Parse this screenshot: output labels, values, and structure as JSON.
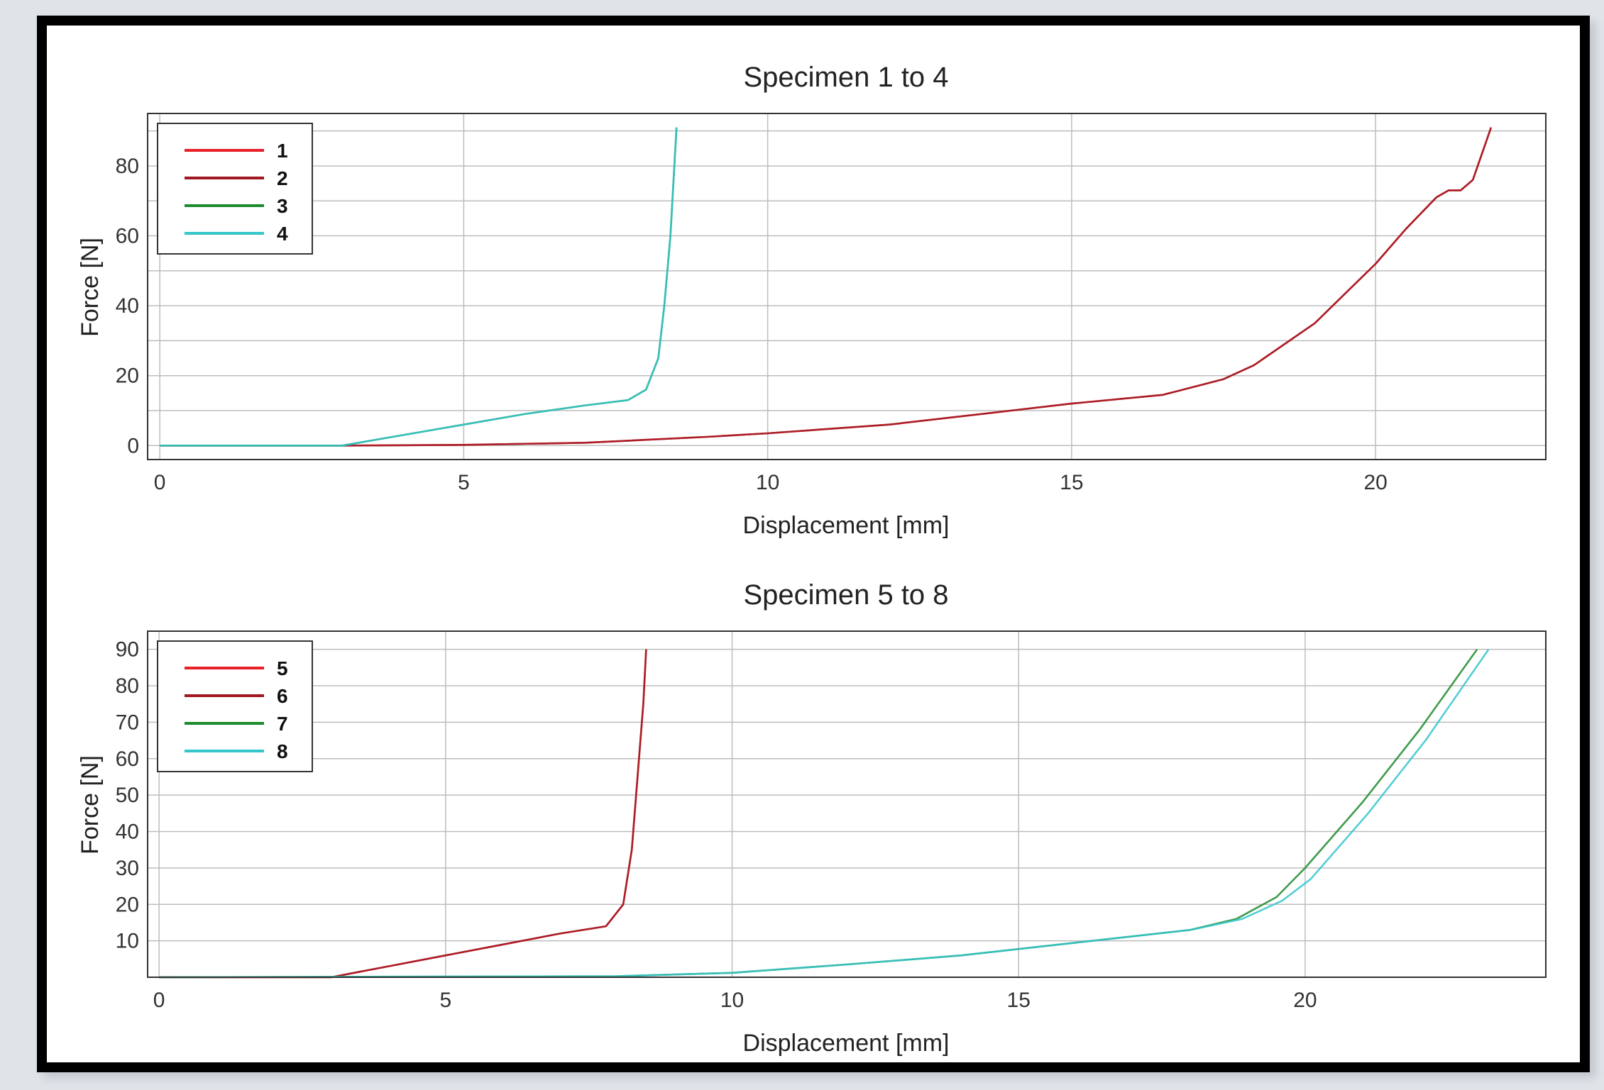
{
  "chart_data": [
    {
      "type": "line",
      "title": "Specimen 1 to 4",
      "xlabel": "Displacement [mm]",
      "ylabel": "Force [N]",
      "xlim": [
        -0.2,
        22.8
      ],
      "ylim": [
        -4,
        95
      ],
      "xticks": [
        0,
        5,
        10,
        15,
        20
      ],
      "yticks": [
        0,
        20,
        40,
        60,
        80
      ],
      "grid": true,
      "legend": "top-left",
      "series": [
        {
          "name": "1",
          "color": "#e8202a",
          "x": [
            0,
            3,
            5,
            7,
            9,
            10,
            12,
            14,
            15,
            16.5,
            17.5,
            18,
            19,
            20,
            20.5,
            21,
            21.2,
            21.4,
            21.6,
            21.9
          ],
          "y": [
            0,
            0,
            0.2,
            0.8,
            2.5,
            3.5,
            6,
            10,
            12,
            14.5,
            19,
            23,
            35,
            52,
            62,
            71,
            73,
            73,
            76,
            91
          ]
        },
        {
          "name": "2",
          "color": "#a01820",
          "x": [
            0,
            3,
            5,
            7,
            9,
            10,
            12,
            14,
            15,
            16.5,
            17.5,
            18,
            19,
            20,
            20.5,
            21,
            21.2,
            21.4,
            21.6,
            21.9
          ],
          "y": [
            0,
            0,
            0.2,
            0.8,
            2.5,
            3.5,
            6,
            10,
            12,
            14.5,
            19,
            23,
            35,
            52,
            62,
            71,
            73,
            73,
            76,
            91
          ]
        },
        {
          "name": "3",
          "color": "#1e8a2e",
          "x": [
            0,
            3,
            4,
            5,
            6,
            7,
            7.7,
            8.0,
            8.2,
            8.3,
            8.4,
            8.5
          ],
          "y": [
            0,
            0,
            3,
            6,
            9,
            11.5,
            13,
            16,
            25,
            40,
            60,
            91
          ]
        },
        {
          "name": "4",
          "color": "#35c6cc",
          "x": [
            0,
            3,
            4,
            5,
            6,
            7,
            7.7,
            8.0,
            8.2,
            8.3,
            8.4,
            8.5
          ],
          "y": [
            0,
            0,
            3,
            6,
            9,
            11.5,
            13,
            16,
            25,
            40,
            60,
            91
          ]
        }
      ]
    },
    {
      "type": "line",
      "title": "Specimen 5 to 8",
      "xlabel": "Displacement [mm]",
      "ylabel": "Force [N]",
      "xlim": [
        -0.2,
        24.2
      ],
      "ylim": [
        0,
        95
      ],
      "xticks": [
        0,
        5,
        10,
        15,
        20
      ],
      "yticks": [
        10,
        20,
        30,
        40,
        50,
        60,
        70,
        80,
        90
      ],
      "grid": true,
      "legend": "top-left",
      "series": [
        {
          "name": "5",
          "color": "#e8202a",
          "x": [
            0,
            3,
            4,
            5,
            6,
            7,
            7.8,
            8.1,
            8.25,
            8.35,
            8.45,
            8.5
          ],
          "y": [
            0,
            0,
            3,
            6,
            9,
            12,
            14,
            20,
            35,
            55,
            75,
            90
          ]
        },
        {
          "name": "6",
          "color": "#a01820",
          "x": [
            0,
            3,
            4,
            5,
            6,
            7,
            7.8,
            8.1,
            8.25,
            8.35,
            8.45,
            8.5
          ],
          "y": [
            0,
            0,
            3,
            6,
            9,
            12,
            14,
            20,
            35,
            55,
            75,
            90
          ]
        },
        {
          "name": "7",
          "color": "#1e8a2e",
          "x": [
            0,
            8,
            10,
            12,
            14,
            16,
            18,
            18.8,
            19.5,
            20,
            21,
            22,
            23
          ],
          "y": [
            0,
            0.3,
            1.2,
            3.5,
            6,
            9.5,
            13,
            16,
            22,
            30,
            48,
            68,
            90
          ]
        },
        {
          "name": "8",
          "color": "#35c6cc",
          "x": [
            0,
            8,
            10,
            12,
            14,
            16,
            18,
            18.9,
            19.6,
            20.1,
            21.1,
            22.1,
            23.2
          ],
          "y": [
            0,
            0.3,
            1.2,
            3.5,
            6,
            9.5,
            13,
            16,
            21,
            27,
            45,
            65,
            90
          ]
        }
      ]
    }
  ]
}
